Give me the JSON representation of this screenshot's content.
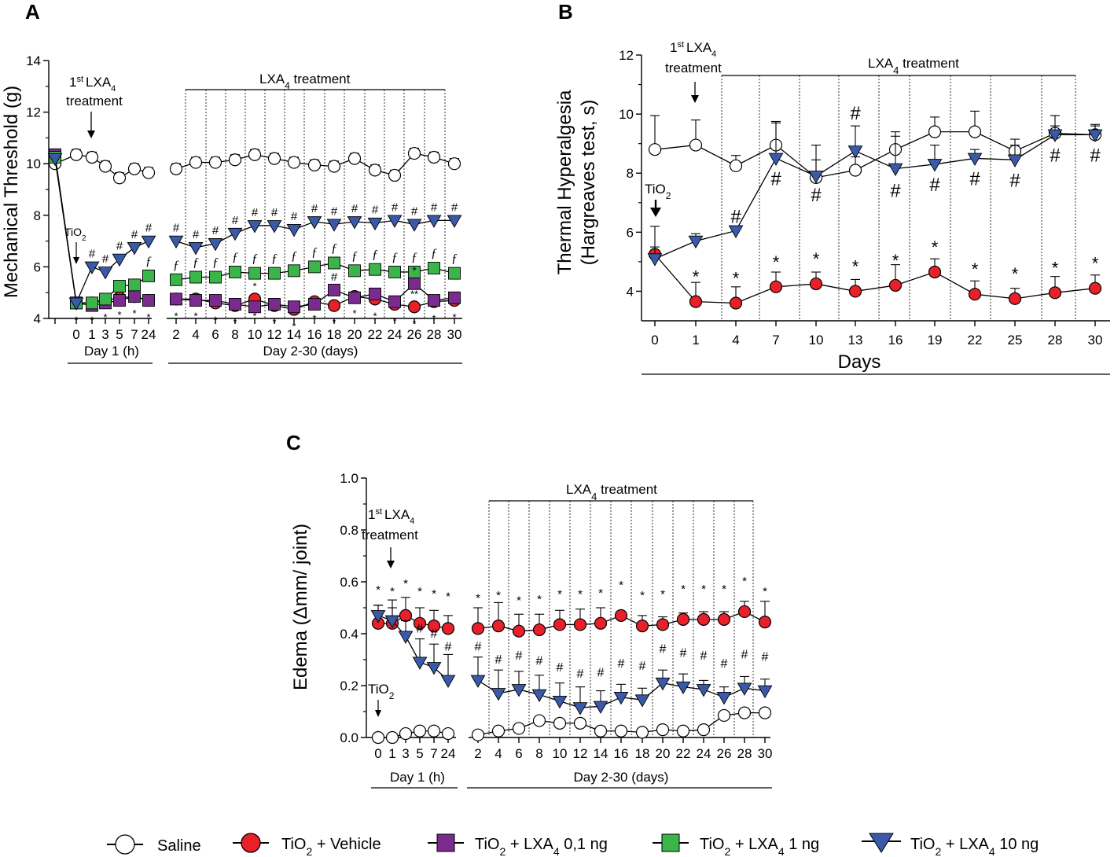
{
  "legend": [
    {
      "name": "Saline",
      "marker": "circle",
      "color": "#ffffff"
    },
    {
      "name": "TiO2 + Vehicle",
      "label_main": "TiO",
      "label_sub": "2",
      "label_rest": " + Vehicle",
      "marker": "circle",
      "color": "#e8202a"
    },
    {
      "name": "TiO2 + LXA4 0,1 ng",
      "label_main": "TiO",
      "label_sub": "2",
      "label_rest": " + LXA",
      "label_sub2": "4",
      "label_rest2": " 0,1 ng",
      "marker": "square",
      "color": "#7b2a8f"
    },
    {
      "name": "TiO2 + LXA4 1 ng",
      "label_main": "TiO",
      "label_sub": "2",
      "label_rest": " + LXA",
      "label_sub2": "4",
      "label_rest2": " 1 ng",
      "marker": "square",
      "color": "#3bb44a"
    },
    {
      "name": "TiO2 + LXA4 10 ng",
      "label_main": "TiO",
      "label_sub": "2",
      "label_rest": " + LXA",
      "label_sub2": "4",
      "label_rest2": " 10 ng",
      "marker": "triangle",
      "color": "#3a5aa8"
    }
  ],
  "chart_data": [
    {
      "panel": "A",
      "type": "line",
      "ylabel": "Mechanical Threshold (g)",
      "ylim": [
        4,
        14
      ],
      "yticks": [
        4,
        6,
        8,
        10,
        12,
        14
      ],
      "categories": [
        "",
        "0",
        "1",
        "3",
        "5",
        "7",
        "24",
        "2",
        "4",
        "6",
        "8",
        "10",
        "12",
        "14",
        "16",
        "18",
        "20",
        "22",
        "24",
        "26",
        "28",
        "30"
      ],
      "groups": [
        {
          "label": "Day 1 (h)"
        },
        {
          "label": "Day 2-30 (days)"
        }
      ],
      "annotations": {
        "first_treatment_line1": "1st LXA4",
        "first_sup": "st",
        "first_main": "1",
        "first_lxa": "LXA",
        "first_sub": "4",
        "first_treatment_line2": "treatment",
        "tio2": "TiO",
        "tio2_sub": "2",
        "lxa4_treatment": "LXA",
        "lxa4_sub": "4",
        "lxa4_rest": " treatment"
      },
      "marks": {
        "hash": "#",
        "star": "*",
        "double_star": "**",
        "f": "ƒ"
      },
      "series": [
        {
          "name": "Saline",
          "values": [
            10.0,
            10.35,
            10.25,
            9.9,
            9.45,
            9.8,
            9.65,
            9.8,
            10.05,
            10.05,
            10.15,
            10.35,
            10.2,
            10.05,
            9.95,
            9.9,
            10.2,
            9.75,
            9.55,
            10.4,
            10.25,
            10.0
          ]
        },
        {
          "name": "TiO2 + Vehicle",
          "values": [
            10.3,
            4.6,
            4.6,
            4.7,
            4.8,
            4.85,
            4.7,
            4.75,
            4.75,
            4.6,
            4.5,
            4.75,
            4.5,
            4.35,
            4.65,
            4.5,
            4.85,
            4.75,
            4.55,
            4.45,
            4.65,
            4.7
          ]
        },
        {
          "name": "TiO2 + LXA4 0,1 ng",
          "values": [
            10.35,
            4.6,
            4.5,
            4.6,
            4.7,
            4.85,
            4.7,
            4.75,
            4.7,
            4.7,
            4.55,
            4.45,
            4.55,
            4.45,
            4.55,
            5.1,
            4.8,
            4.95,
            4.65,
            5.35,
            4.7,
            4.8
          ]
        },
        {
          "name": "TiO2 + LXA4 1 ng",
          "values": [
            10.25,
            4.6,
            4.6,
            4.75,
            5.25,
            5.3,
            5.65,
            5.5,
            5.6,
            5.6,
            5.8,
            5.75,
            5.75,
            5.85,
            6.0,
            6.15,
            5.85,
            5.9,
            5.8,
            5.8,
            5.95,
            5.75
          ]
        },
        {
          "name": "TiO2 + LXA4 10 ng",
          "values": [
            10.2,
            4.6,
            6.0,
            5.8,
            6.3,
            6.75,
            7.0,
            7.0,
            6.75,
            6.9,
            7.3,
            7.6,
            7.6,
            7.45,
            7.75,
            7.65,
            7.75,
            7.7,
            7.8,
            7.65,
            7.8,
            7.8
          ]
        }
      ]
    },
    {
      "panel": "B",
      "type": "line",
      "ylabel_line1": "Thermal Hyperalgesia",
      "ylabel_line2": "(Hargreaves test, s)",
      "ylim": [
        3,
        12
      ],
      "yticks": [
        4,
        6,
        8,
        10,
        12
      ],
      "categories": [
        "0",
        "1",
        "4",
        "7",
        "10",
        "13",
        "16",
        "19",
        "22",
        "25",
        "28",
        "30"
      ],
      "xlabel": "Days",
      "annotations": {
        "first_main": "1",
        "first_sup": "st",
        "first_lxa": "LXA",
        "first_sub": "4",
        "first_treatment_line2": "treatment",
        "tio2": "TiO",
        "tio2_sub": "2",
        "lxa4_treatment": "LXA",
        "lxa4_sub": "4",
        "lxa4_rest": " treatment"
      },
      "marks": {
        "hash": "#",
        "star": "*"
      },
      "series": [
        {
          "name": "Saline",
          "values": [
            8.8,
            8.95,
            8.25,
            8.95,
            7.85,
            8.1,
            8.8,
            9.4,
            9.4,
            8.75,
            9.35,
            9.3
          ]
        },
        {
          "name": "TiO2 + Vehicle",
          "values": [
            5.25,
            3.65,
            3.6,
            4.15,
            4.25,
            4.0,
            4.2,
            4.65,
            3.9,
            3.75,
            3.95,
            4.1
          ]
        },
        {
          "name": "TiO2 + LXA4 10 ng",
          "values": [
            5.1,
            5.7,
            6.05,
            8.5,
            7.9,
            8.75,
            8.15,
            8.3,
            8.5,
            8.45,
            9.3,
            9.3
          ]
        }
      ]
    },
    {
      "panel": "C",
      "type": "line",
      "ylabel": "Edema (Δmm/ joint)",
      "ylim": [
        0,
        1.0
      ],
      "yticks": [
        "0.0",
        "0.2",
        "0.4",
        "0.6",
        "0.8",
        "1.0"
      ],
      "categories": [
        "0",
        "1",
        "3",
        "5",
        "7",
        "24",
        "2",
        "4",
        "6",
        "8",
        "10",
        "12",
        "14",
        "16",
        "18",
        "20",
        "22",
        "24",
        "26",
        "28",
        "30"
      ],
      "groups": [
        {
          "label": "Day 1 (h)"
        },
        {
          "label": "Day 2-30 (days)"
        }
      ],
      "annotations": {
        "first_main": "1",
        "first_sup": "st",
        "first_lxa": "LXA",
        "first_sub": "4",
        "first_treatment_line2": "treatment",
        "tio2": "TiO",
        "tio2_sub": "2",
        "lxa4_treatment": "LXA",
        "lxa4_sub": "4",
        "lxa4_rest": " treatment"
      },
      "marks": {
        "hash": "#",
        "star": "*"
      },
      "series": [
        {
          "name": "Saline",
          "values": [
            0.0,
            0.0,
            0.015,
            0.025,
            0.025,
            0.015,
            0.01,
            0.025,
            0.035,
            0.065,
            0.055,
            0.055,
            0.025,
            0.025,
            0.02,
            0.03,
            0.025,
            0.03,
            0.085,
            0.095,
            0.095
          ]
        },
        {
          "name": "TiO2 + Vehicle",
          "values": [
            0.44,
            0.44,
            0.47,
            0.44,
            0.43,
            0.42,
            0.42,
            0.43,
            0.41,
            0.415,
            0.435,
            0.435,
            0.44,
            0.47,
            0.43,
            0.435,
            0.455,
            0.455,
            0.455,
            0.485,
            0.445
          ]
        },
        {
          "name": "TiO2 + LXA4 10 ng",
          "values": [
            0.47,
            0.45,
            0.39,
            0.29,
            0.27,
            0.22,
            0.22,
            0.17,
            0.185,
            0.165,
            0.14,
            0.115,
            0.12,
            0.155,
            0.145,
            0.21,
            0.195,
            0.185,
            0.155,
            0.19,
            0.18
          ]
        }
      ]
    }
  ]
}
